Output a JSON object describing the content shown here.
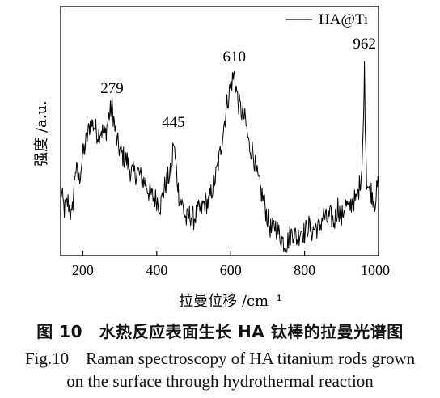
{
  "chart_data": {
    "type": "line",
    "title": "",
    "xlabel": "拉曼位移 /cm⁻¹",
    "ylabel": "强度 /a.u.",
    "xlim": [
      140,
      1000
    ],
    "ylim": [
      0,
      1
    ],
    "xticks": [
      "200",
      "400",
      "600",
      "800",
      "1000"
    ],
    "grid": false,
    "legend": "top-right",
    "series": [
      {
        "name": "HA@Ti",
        "color": "#000000",
        "x": [
          140,
          150,
          160,
          170,
          180,
          190,
          200,
          210,
          220,
          230,
          240,
          250,
          260,
          270,
          279,
          290,
          300,
          310,
          320,
          330,
          340,
          350,
          360,
          370,
          380,
          390,
          400,
          410,
          420,
          430,
          440,
          445,
          450,
          460,
          470,
          480,
          490,
          500,
          510,
          520,
          530,
          540,
          550,
          560,
          570,
          580,
          590,
          600,
          610,
          620,
          630,
          640,
          650,
          660,
          670,
          680,
          690,
          700,
          710,
          720,
          730,
          740,
          750,
          760,
          770,
          780,
          790,
          800,
          810,
          820,
          830,
          840,
          850,
          860,
          870,
          880,
          890,
          900,
          910,
          920,
          930,
          940,
          950,
          955,
          960,
          962,
          964,
          968,
          975,
          980,
          990,
          1000
        ],
        "y": [
          0.3,
          0.2,
          0.24,
          0.16,
          0.4,
          0.34,
          0.46,
          0.53,
          0.61,
          0.6,
          0.56,
          0.58,
          0.55,
          0.64,
          0.69,
          0.54,
          0.48,
          0.45,
          0.43,
          0.38,
          0.37,
          0.38,
          0.34,
          0.33,
          0.28,
          0.26,
          0.25,
          0.22,
          0.3,
          0.35,
          0.38,
          0.53,
          0.44,
          0.27,
          0.22,
          0.15,
          0.18,
          0.16,
          0.19,
          0.2,
          0.24,
          0.23,
          0.3,
          0.36,
          0.45,
          0.58,
          0.7,
          0.79,
          0.84,
          0.71,
          0.66,
          0.62,
          0.5,
          0.48,
          0.37,
          0.3,
          0.24,
          0.16,
          0.1,
          0.13,
          0.09,
          0.06,
          0.03,
          0.08,
          0.1,
          0.06,
          0.11,
          0.09,
          0.13,
          0.1,
          0.12,
          0.11,
          0.18,
          0.15,
          0.17,
          0.14,
          0.22,
          0.16,
          0.23,
          0.2,
          0.25,
          0.24,
          0.33,
          0.4,
          0.67,
          0.9,
          0.58,
          0.34,
          0.28,
          0.29,
          0.24,
          0.33
        ]
      }
    ],
    "annotations": [
      {
        "text": "279",
        "x": 279,
        "y": 0.69
      },
      {
        "text": "445",
        "x": 445,
        "y": 0.53
      },
      {
        "text": "610",
        "x": 610,
        "y": 0.84
      },
      {
        "text": "962",
        "x": 962,
        "y": 0.9
      }
    ]
  },
  "caption": {
    "cn": "图 10　水热反应表面生长 HA 钛棒的拉曼光谱图",
    "en_line1": "Fig.10　Raman spectroscopy of HA titanium rods grown",
    "en_line2": "on the surface through hydrothermal reaction"
  }
}
